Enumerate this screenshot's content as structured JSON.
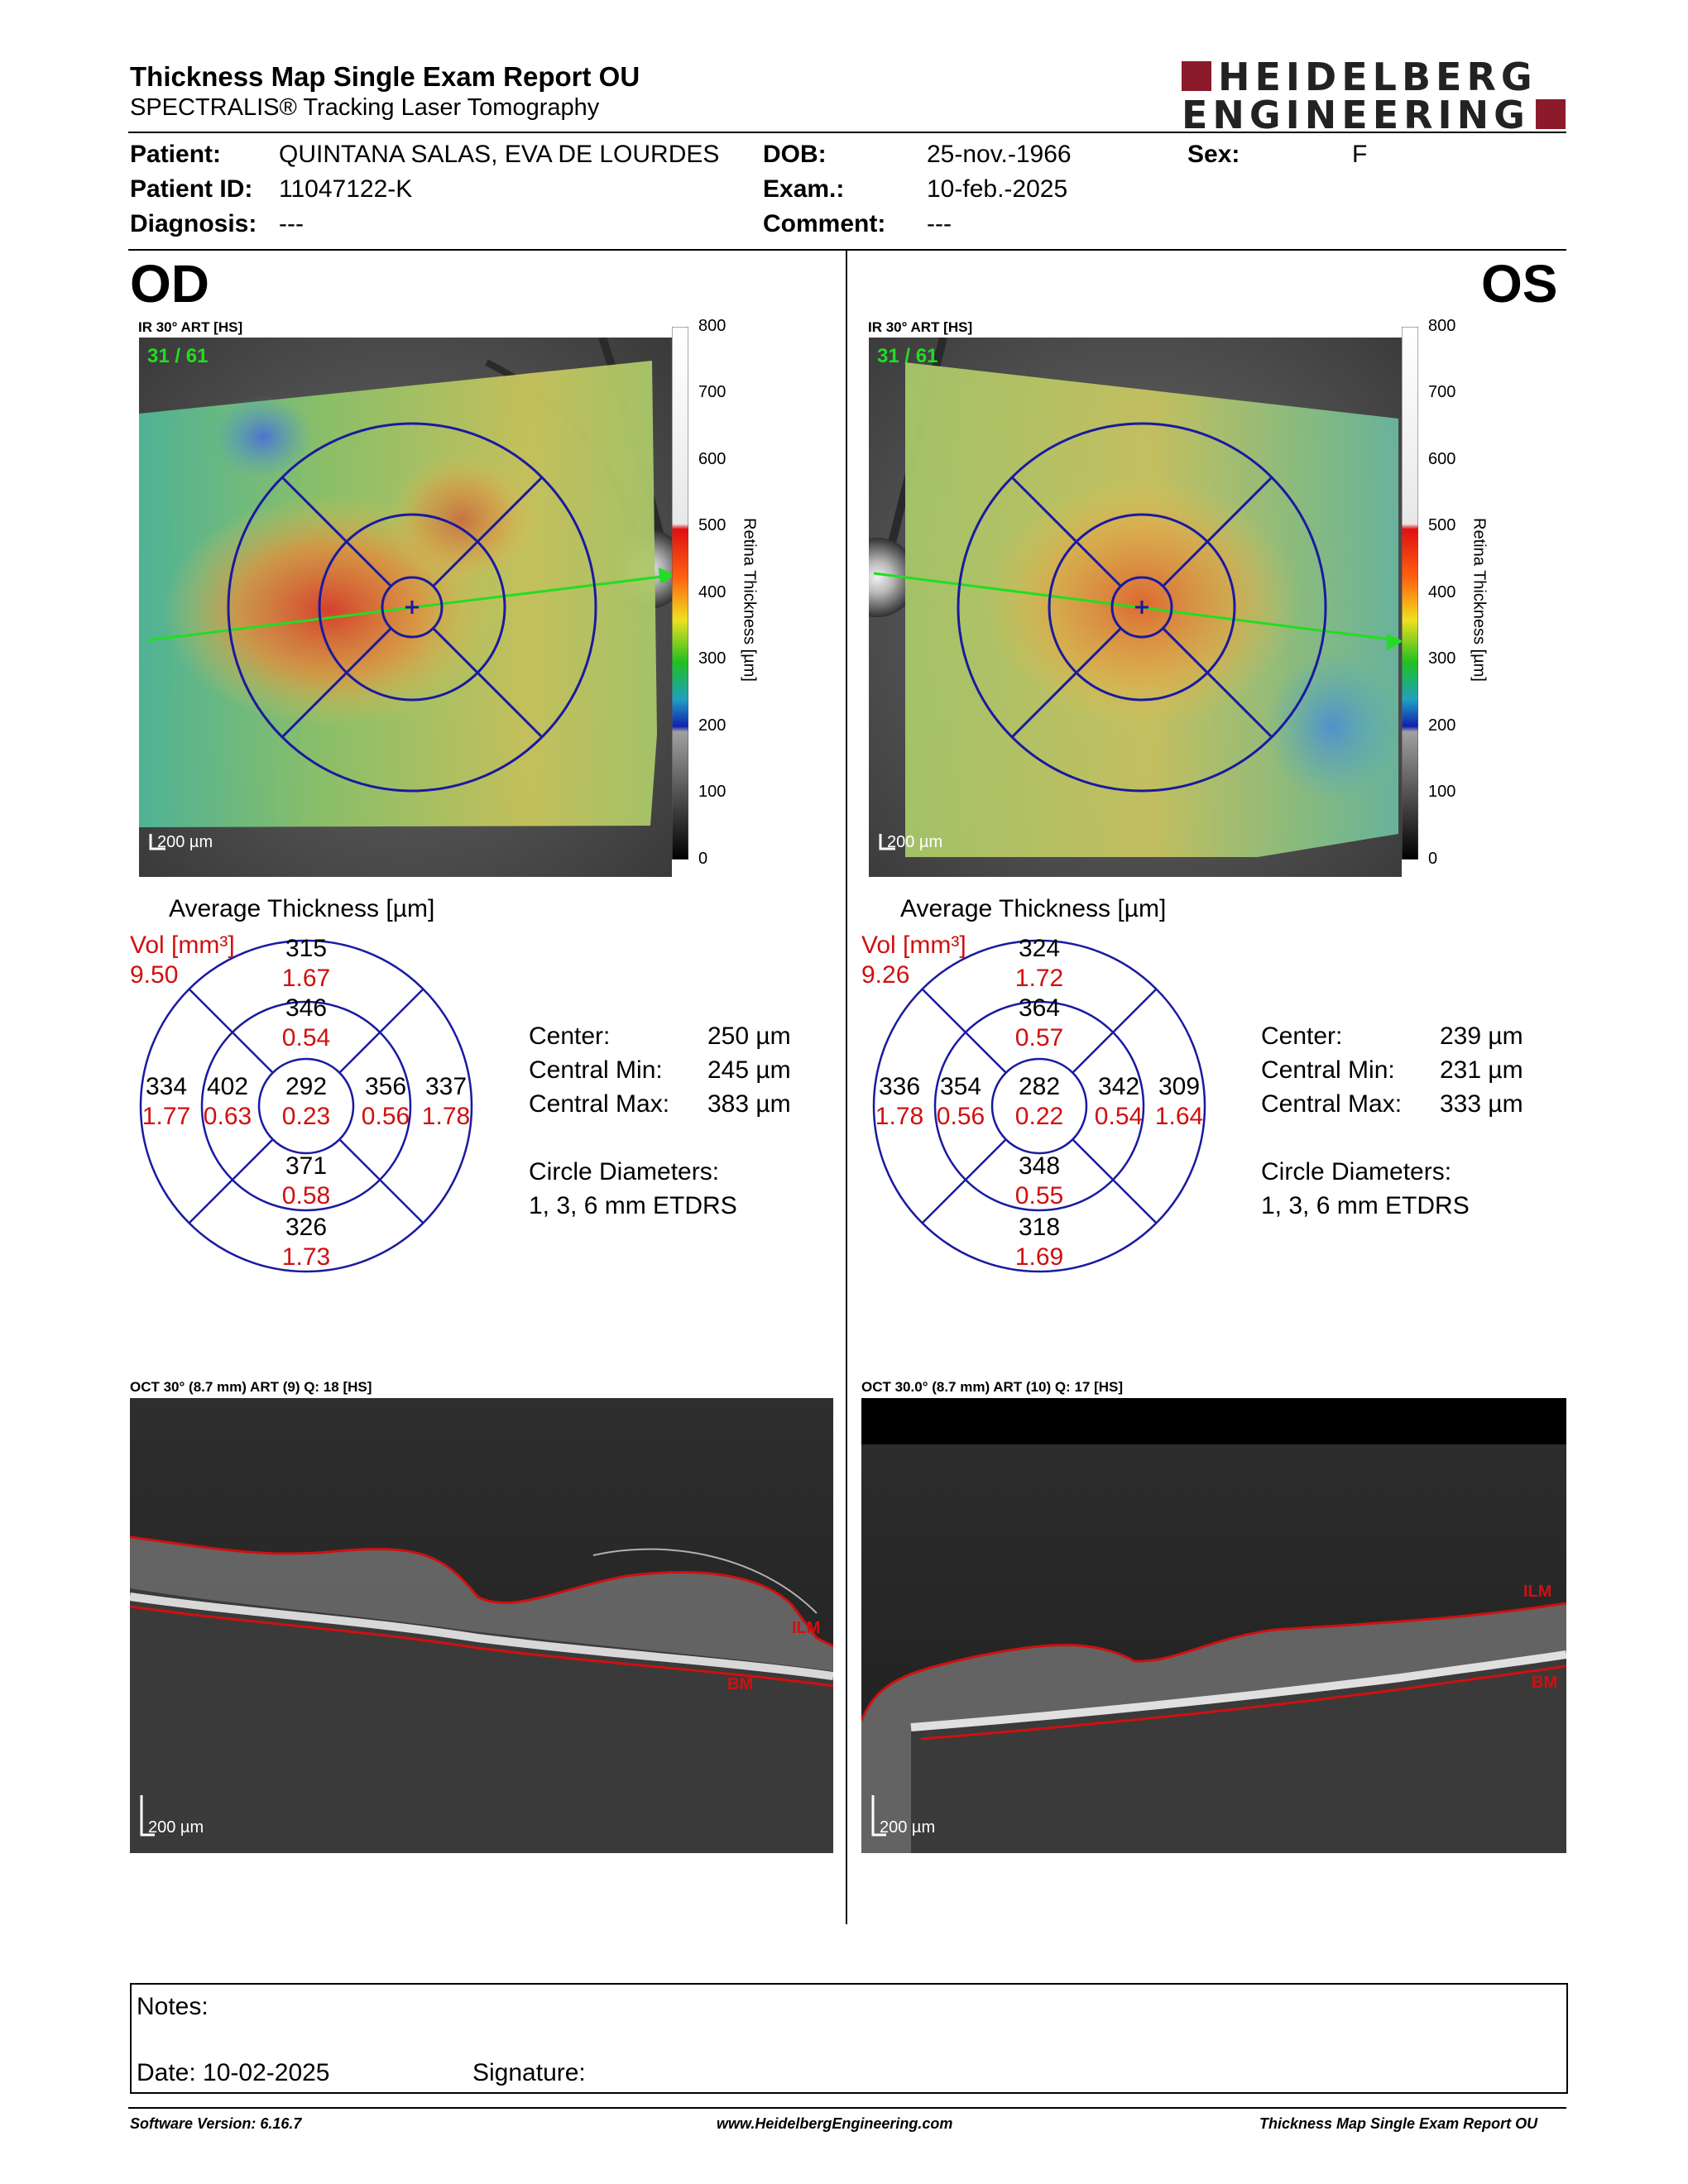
{
  "header": {
    "title": "Thickness Map Single Exam Report OU",
    "subtitle": "SPECTRALIS® Tracking Laser Tomography",
    "logo_line1": "HEIDELBERG",
    "logo_line2": "ENGINEERING",
    "brand_color": "#8b1a2b"
  },
  "patient": {
    "patient_label": "Patient:",
    "patient_value": "QUINTANA SALAS, EVA DE LOURDES",
    "dob_label": "DOB:",
    "dob_value": "25-nov.-1966",
    "sex_label": "Sex:",
    "sex_value": "F",
    "id_label": "Patient ID:",
    "id_value": "11047122-K",
    "exam_label": "Exam.:",
    "exam_value": "10-feb.-2025",
    "diag_label": "Diagnosis:",
    "diag_value": "---",
    "comment_label": "Comment:",
    "comment_value": "---"
  },
  "od": {
    "eye": "OD",
    "ir_label": "IR 30° ART [HS]",
    "frame": "31 / 61",
    "scale": "200 µm",
    "avg_title": "Average Thickness [µm]",
    "vol_label": "Vol [mm³]",
    "vol_total": "9.50",
    "grid": {
      "center_t": "292",
      "center_v": "0.23",
      "in_sup_t": "346",
      "in_sup_v": "0.54",
      "in_inf_t": "371",
      "in_inf_v": "0.58",
      "in_left_t": "402",
      "in_left_v": "0.63",
      "in_right_t": "356",
      "in_right_v": "0.56",
      "out_sup_t": "315",
      "out_sup_v": "1.67",
      "out_inf_t": "326",
      "out_inf_v": "1.73",
      "out_left_t": "334",
      "out_left_v": "1.77",
      "out_right_t": "337",
      "out_right_v": "1.78"
    },
    "stats": {
      "center_label": "Center:",
      "center_value": "250 µm",
      "min_label": "Central Min:",
      "min_value": "245 µm",
      "max_label": "Central Max:",
      "max_value": "383 µm",
      "diam_label": "Circle Diameters:",
      "diam_value": "1, 3, 6 mm ETDRS"
    },
    "oct_label": "OCT 30° (8.7 mm) ART (9) Q: 18 [HS]",
    "ilm": "ILM",
    "bm": "BM"
  },
  "os": {
    "eye": "OS",
    "ir_label": "IR 30° ART [HS]",
    "frame": "31 / 61",
    "scale": "200 µm",
    "avg_title": "Average Thickness [µm]",
    "vol_label": "Vol [mm³]",
    "vol_total": "9.26",
    "grid": {
      "center_t": "282",
      "center_v": "0.22",
      "in_sup_t": "364",
      "in_sup_v": "0.57",
      "in_inf_t": "348",
      "in_inf_v": "0.55",
      "in_left_t": "354",
      "in_left_v": "0.56",
      "in_right_t": "342",
      "in_right_v": "0.54",
      "out_sup_t": "324",
      "out_sup_v": "1.72",
      "out_inf_t": "318",
      "out_inf_v": "1.69",
      "out_left_t": "336",
      "out_left_v": "1.78",
      "out_right_t": "309",
      "out_right_v": "1.64"
    },
    "stats": {
      "center_label": "Center:",
      "center_value": "239 µm",
      "min_label": "Central Min:",
      "min_value": "231 µm",
      "max_label": "Central Max:",
      "max_value": "333 µm",
      "diam_label": "Circle Diameters:",
      "diam_value": "1, 3, 6 mm ETDRS"
    },
    "oct_label": "OCT 30.0° (8.7 mm) ART (10) Q: 17 [HS]",
    "ilm": "ILM",
    "bm": "BM"
  },
  "colorbar": {
    "ticks": [
      "800",
      "700",
      "600",
      "500",
      "400",
      "300",
      "200",
      "100",
      "0"
    ],
    "axis_label": "Retina  Thickness [µm]"
  },
  "notes": {
    "notes_label": "Notes:",
    "date_label": "Date: 10-02-2025",
    "signature_label": "Signature:"
  },
  "footer": {
    "version": "Software Version: 6.16.7",
    "website": "www.HeidelbergEngineering.com",
    "report": "Thickness Map Single Exam Report OU"
  },
  "colors": {
    "grid_blue": "#1a1aa0",
    "volume_red": "#d01010",
    "oct_line": "#d01010",
    "arrow": "#22dd22"
  }
}
